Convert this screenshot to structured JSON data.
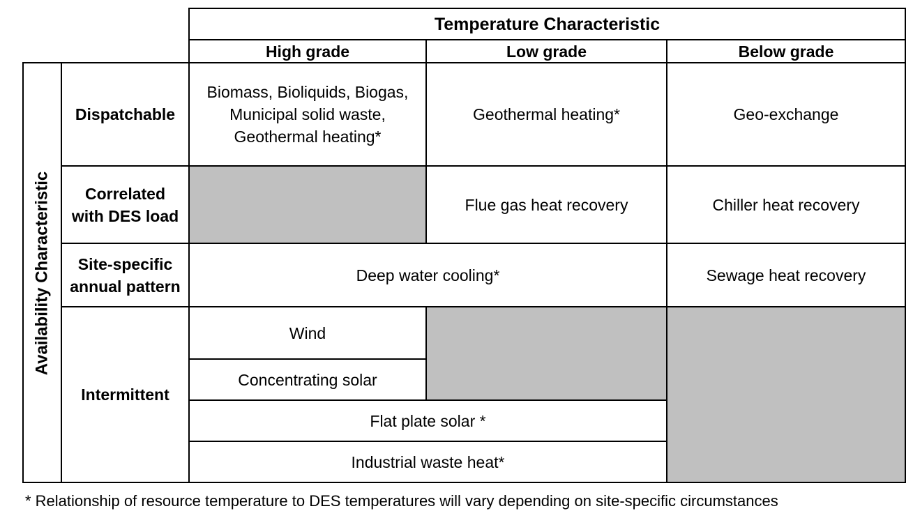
{
  "header": {
    "top": "Temperature Characteristic",
    "columns": [
      "High grade",
      "Low grade",
      "Below grade"
    ]
  },
  "side_label": "Availability Characteristic",
  "rows": {
    "dispatchable": {
      "label": "Dispatchable",
      "high_lines": [
        "Biomass, Bioliquids, Biogas,",
        "Municipal solid waste,",
        "Geothermal heating*"
      ],
      "low": "Geothermal heating*",
      "below": "Geo-exchange"
    },
    "correlated": {
      "label_lines": [
        "Correlated",
        "with DES load"
      ],
      "low": "Flue gas heat recovery",
      "below": "Chiller heat recovery"
    },
    "site_specific": {
      "label_lines": [
        "Site-specific",
        "annual pattern"
      ],
      "high_low": "Deep water cooling*",
      "below": "Sewage heat recovery"
    },
    "intermittent": {
      "label": "Intermittent",
      "items": [
        "Wind",
        "Concentrating solar",
        "Flat plate solar *",
        "Industrial waste heat*"
      ]
    }
  },
  "footnote": "* Relationship of resource temperature to DES temperatures will vary depending on site-specific circumstances",
  "colors": {
    "shaded": "#c0c0c0",
    "border": "#000000"
  }
}
